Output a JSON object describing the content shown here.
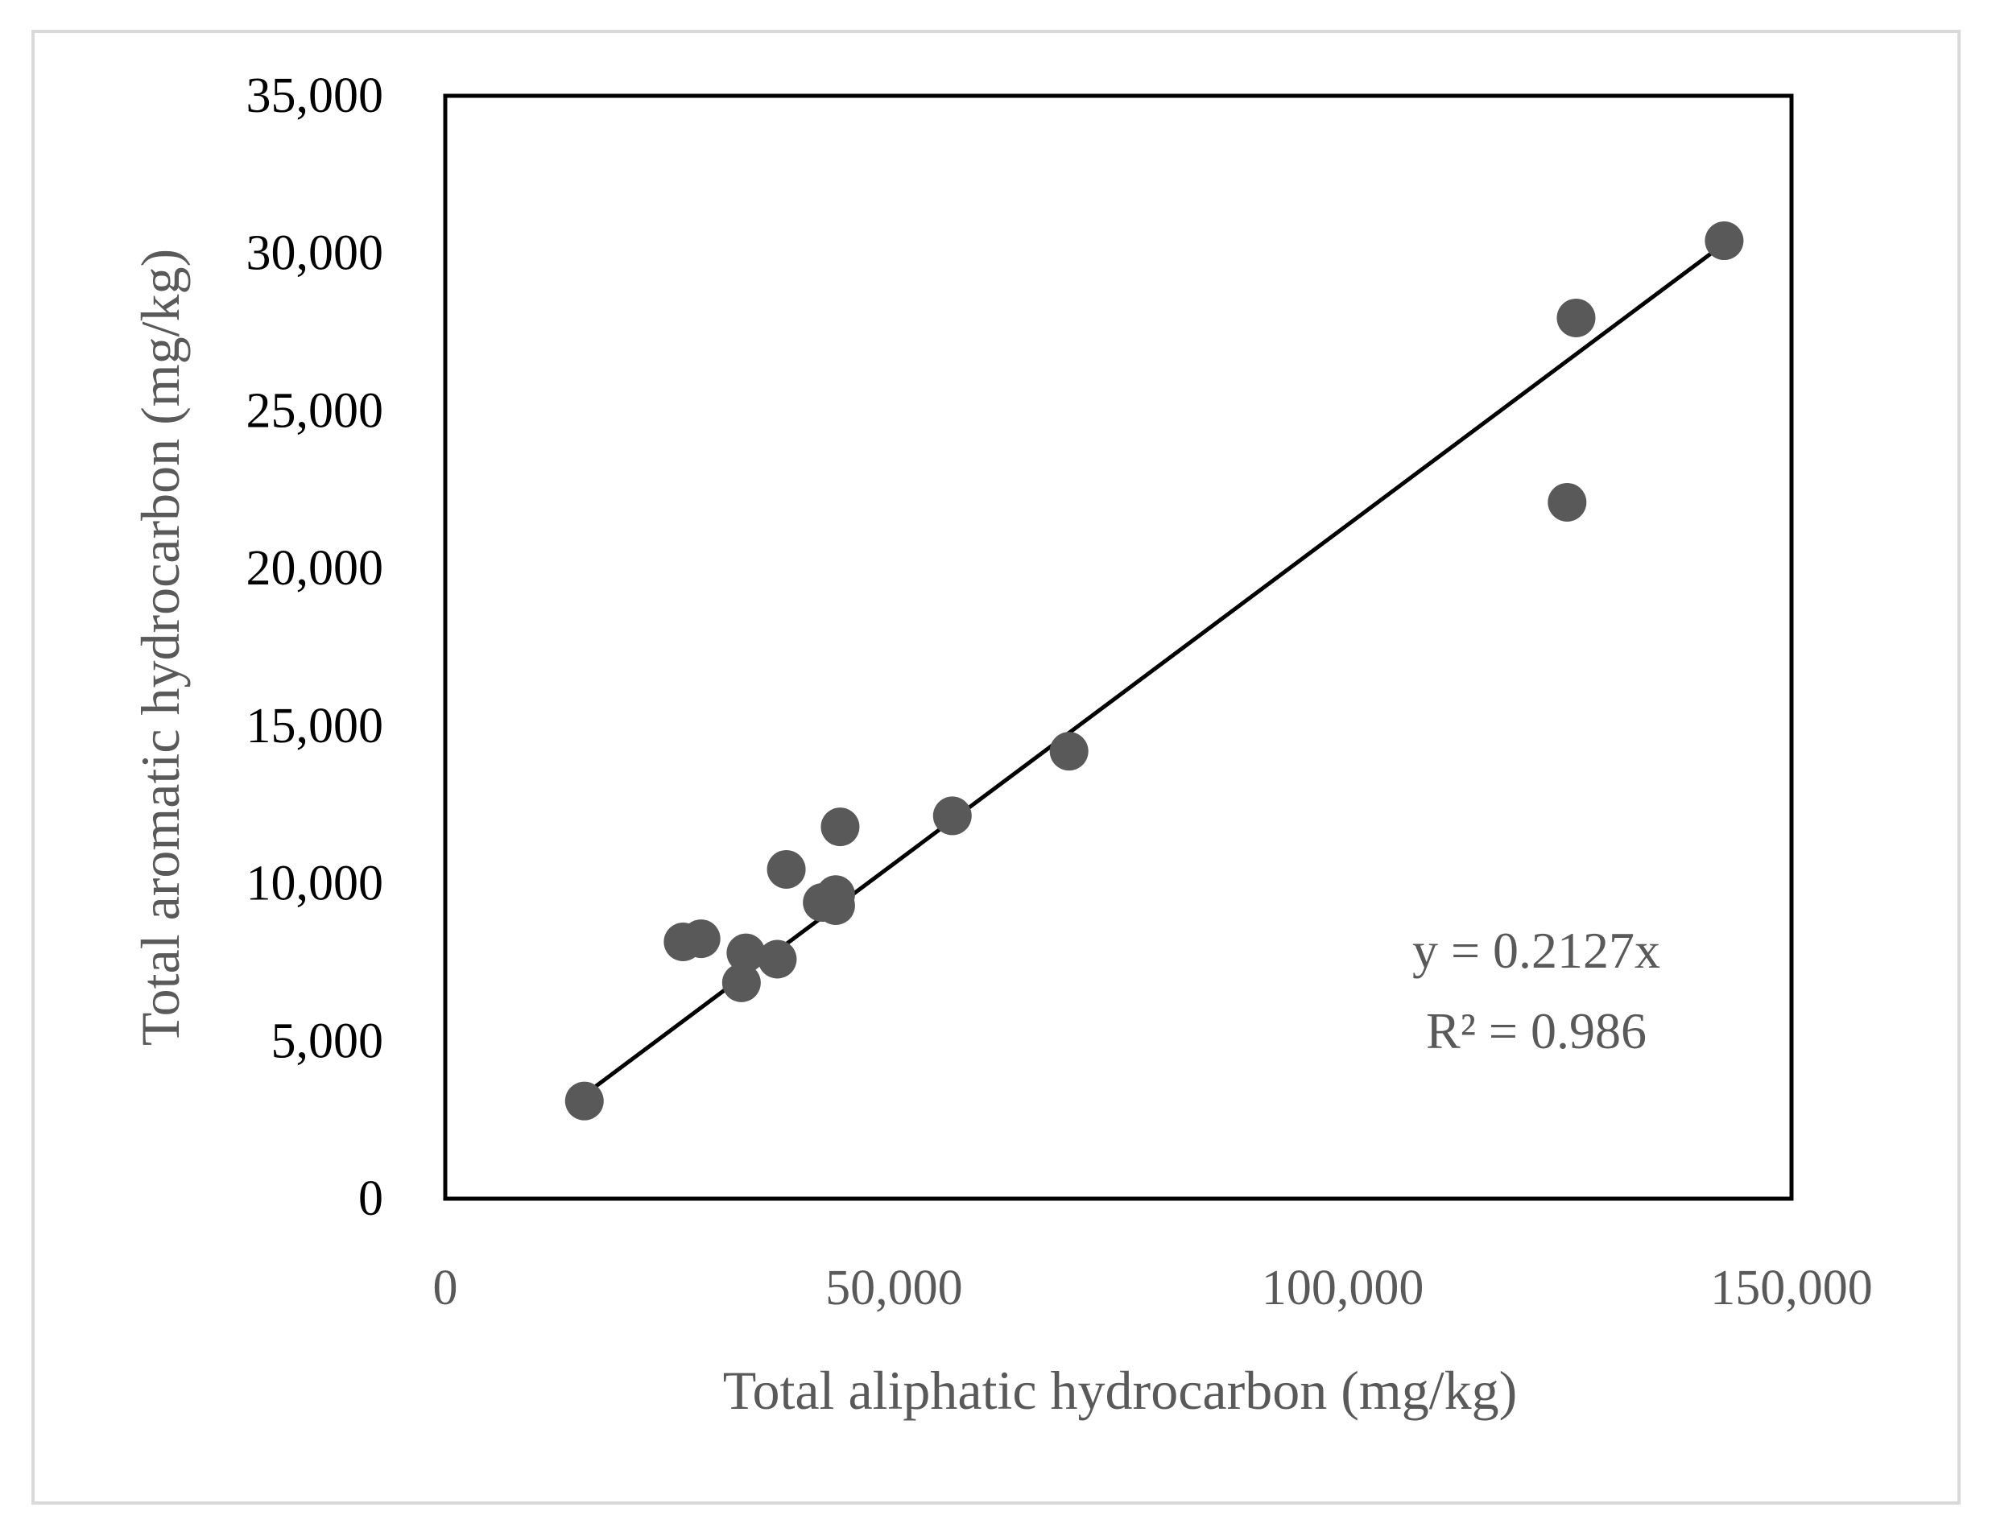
{
  "chart_data": {
    "type": "scatter",
    "xlabel": "Total aliphatic hydrocarbon (mg/kg)",
    "ylabel": "Total aromatic hydrocarbon (mg/kg)",
    "xlim": [
      0,
      150000
    ],
    "ylim": [
      0,
      35000
    ],
    "x_ticks": [
      0,
      50000,
      100000,
      150000
    ],
    "x_tick_labels": [
      "0",
      "50,000",
      "100,000",
      "150,000"
    ],
    "y_ticks": [
      0,
      5000,
      10000,
      15000,
      20000,
      25000,
      30000,
      35000
    ],
    "y_tick_labels": [
      "0",
      "5,000",
      "10,000",
      "15,000",
      "20,000",
      "25,000",
      "30,000",
      "35,000"
    ],
    "grid": false,
    "series": [
      {
        "points": [
          {
            "x": 15500,
            "y": 3100
          },
          {
            "x": 26500,
            "y": 8150
          },
          {
            "x": 28500,
            "y": 8250
          },
          {
            "x": 33000,
            "y": 6850
          },
          {
            "x": 33500,
            "y": 7800
          },
          {
            "x": 37000,
            "y": 7600
          },
          {
            "x": 38000,
            "y": 10450
          },
          {
            "x": 42000,
            "y": 9400
          },
          {
            "x": 43500,
            "y": 9300
          },
          {
            "x": 43500,
            "y": 9650
          },
          {
            "x": 44000,
            "y": 11800
          },
          {
            "x": 56500,
            "y": 12150
          },
          {
            "x": 69500,
            "y": 14200
          },
          {
            "x": 125000,
            "y": 22100
          },
          {
            "x": 126000,
            "y": 27950
          },
          {
            "x": 142500,
            "y": 30400
          }
        ],
        "color": "#595959"
      }
    ],
    "trendline": {
      "slope": 0.2127,
      "x_range": [
        15500,
        142500
      ],
      "color": "#000000"
    },
    "annotations": [
      "y = 0.2127x",
      "R² = 0.986"
    ]
  }
}
